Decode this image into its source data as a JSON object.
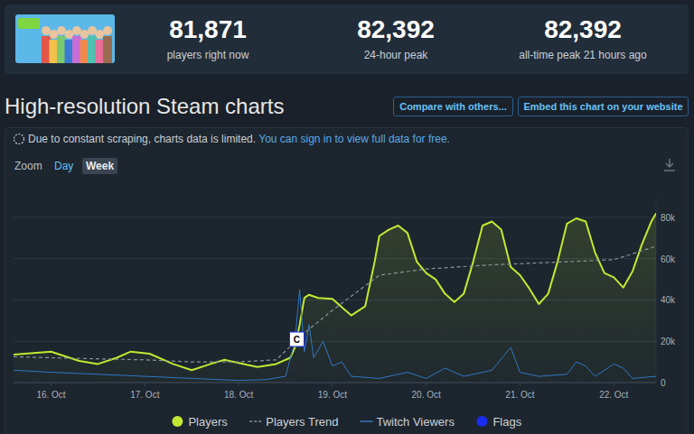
{
  "header": {
    "stats": [
      {
        "value": "81,871",
        "label": "players right now"
      },
      {
        "value": "82,392",
        "label": "24-hour peak"
      },
      {
        "value": "82,392",
        "label": "all-time peak 21 hours ago"
      }
    ]
  },
  "page": {
    "title": "High-resolution Steam charts",
    "buttons": [
      "Compare with others...",
      "Embed this chart on your website"
    ],
    "notice": {
      "text": "Due to constant scraping, charts data is limited.",
      "link": "You can sign in to view full data for free."
    },
    "zoom": {
      "label": "Zoom",
      "options": [
        "Day",
        "Week"
      ],
      "selected": 1
    }
  },
  "chart_data": {
    "type": "line",
    "xlim": [
      15.6,
      22.45
    ],
    "xticks": [
      {
        "value": 16,
        "label": "16. Oct"
      },
      {
        "value": 17,
        "label": "17. Oct"
      },
      {
        "value": 18,
        "label": "18. Oct"
      },
      {
        "value": 19,
        "label": "19. Oct"
      },
      {
        "value": 20,
        "label": "20. Oct"
      },
      {
        "value": 21,
        "label": "21. Oct"
      },
      {
        "value": 22,
        "label": "22. Oct"
      }
    ],
    "ylim": [
      0,
      90000
    ],
    "yticks": [
      0,
      {
        "value": 20000,
        "label": "20k"
      },
      {
        "value": 40000,
        "label": "40k"
      },
      {
        "value": 60000,
        "label": "60k"
      },
      {
        "value": 80000,
        "label": "80k"
      }
    ],
    "grid": true,
    "legend": "bottom",
    "series": [
      {
        "name": "Players",
        "type": "area",
        "color": "#c2e832",
        "line_style": "solid",
        "x": [
          15.6,
          16,
          16.3,
          16.5,
          16.7,
          16.85,
          17.05,
          17.3,
          17.5,
          17.7,
          17.85,
          18,
          18.2,
          18.4,
          18.55,
          18.6,
          18.65,
          18.7,
          18.75,
          18.85,
          19,
          19.1,
          19.2,
          19.35,
          19.45,
          19.5,
          19.6,
          19.7,
          19.8,
          19.9,
          20,
          20.1,
          20.2,
          20.3,
          20.4,
          20.5,
          20.6,
          20.7,
          20.8,
          20.9,
          21,
          21.1,
          21.2,
          21.3,
          21.4,
          21.5,
          21.6,
          21.7,
          21.8,
          21.9,
          22,
          22.1,
          22.2,
          22.3,
          22.4,
          22.45
        ],
        "values": [
          13500,
          15000,
          10500,
          9000,
          12000,
          15000,
          14000,
          9000,
          6000,
          9000,
          11000,
          9500,
          7500,
          9000,
          12000,
          17000,
          28000,
          41000,
          42500,
          41000,
          40500,
          36500,
          32500,
          37000,
          58500,
          71000,
          74000,
          76000,
          72500,
          58500,
          53000,
          50000,
          43000,
          39000,
          43000,
          58500,
          76000,
          78000,
          74000,
          56000,
          52000,
          45500,
          38000,
          43000,
          58500,
          77000,
          79500,
          78000,
          63000,
          53000,
          51000,
          46000,
          54000,
          67000,
          78000,
          81871
        ]
      },
      {
        "name": "Players Trend",
        "type": "line",
        "color": "#8a939c",
        "line_style": "dashed",
        "x": [
          15.6,
          16,
          16.5,
          17,
          17.5,
          18,
          18.4,
          18.7,
          19,
          19.5,
          20,
          20.7,
          21.5,
          22,
          22.45
        ],
        "values": [
          12500,
          12000,
          11500,
          11000,
          10000,
          10000,
          11000,
          24000,
          35000,
          52000,
          55000,
          57000,
          58500,
          59500,
          66000
        ]
      },
      {
        "name": "Twitch Viewers",
        "type": "line",
        "color": "#2f78c2",
        "line_style": "solid",
        "x": [
          15.6,
          16,
          16.5,
          17,
          17.5,
          18,
          18.3,
          18.5,
          18.6,
          18.65,
          18.7,
          18.75,
          18.8,
          18.9,
          19,
          19.1,
          19.2,
          19.5,
          19.8,
          20,
          20.2,
          20.4,
          20.7,
          20.9,
          21,
          21.2,
          21.5,
          21.6,
          21.7,
          21.8,
          22,
          22.1,
          22.2,
          22.45
        ],
        "values": [
          6000,
          5000,
          4000,
          3000,
          2000,
          1000,
          1500,
          3000,
          20000,
          45000,
          15000,
          28000,
          12000,
          20000,
          8000,
          10000,
          3000,
          2000,
          5000,
          2000,
          7000,
          3000,
          6000,
          17000,
          5000,
          3000,
          4000,
          10000,
          8000,
          3000,
          9000,
          7000,
          2000,
          3000
        ]
      },
      {
        "name": "Flags",
        "type": "flag",
        "color": "#1a2cf0",
        "x": [
          18.62
        ],
        "labels": [
          "C"
        ]
      }
    ]
  }
}
